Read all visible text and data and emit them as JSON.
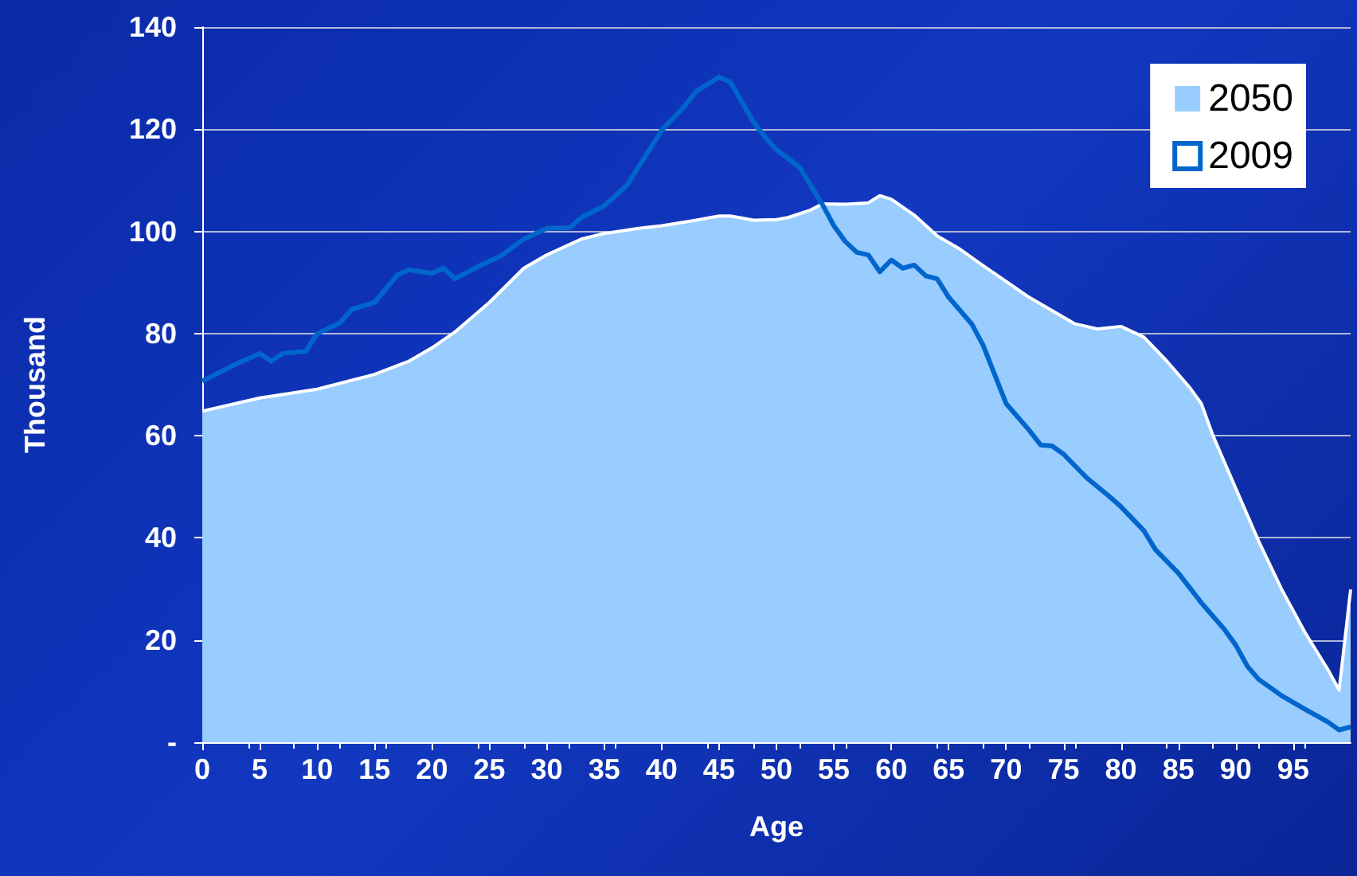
{
  "chart_data": {
    "type": "area",
    "xlabel": "Age",
    "ylabel": "Thousand",
    "xlim": [
      0,
      100
    ],
    "xticks": [
      0,
      5,
      10,
      15,
      20,
      25,
      30,
      35,
      40,
      45,
      50,
      55,
      60,
      65,
      70,
      75,
      80,
      85,
      90,
      95
    ],
    "ylim": [
      0,
      140
    ],
    "yticks": [
      {
        "value": 0,
        "label": "-"
      },
      20,
      40,
      60,
      80,
      100,
      120,
      140
    ],
    "grid": "y",
    "legend": "top right",
    "marker": "none",
    "series": [
      {
        "name": "2050",
        "color": "#99ccff",
        "x": [
          0,
          5,
          10,
          15,
          18,
          20,
          22,
          25,
          28,
          30,
          33,
          35,
          38,
          40,
          43,
          45,
          46,
          48,
          50,
          51,
          53,
          54,
          56,
          58,
          59,
          60,
          62,
          64,
          66,
          68,
          70,
          72,
          74,
          76,
          78,
          80,
          82,
          84,
          86,
          87,
          88,
          90,
          92,
          94,
          96,
          98,
          99,
          100
        ],
        "values": [
          64.8,
          67.4,
          69.1,
          72.0,
          74.6,
          77.2,
          80.3,
          86.1,
          92.8,
          95.4,
          98.5,
          99.6,
          100.6,
          101.1,
          102.2,
          103.0,
          103.0,
          102.2,
          102.3,
          102.7,
          104.2,
          105.4,
          105.3,
          105.6,
          107.0,
          106.3,
          103.2,
          99.1,
          96.5,
          93.3,
          90.2,
          87.1,
          84.5,
          81.9,
          80.9,
          81.4,
          79.3,
          74.6,
          69.4,
          66.3,
          60.1,
          49.7,
          39.3,
          29.9,
          21.6,
          14.3,
          10.2,
          29.9
        ]
      },
      {
        "name": "2009",
        "type": "line",
        "color": "#0066cc",
        "x": [
          0,
          3,
          5,
          6,
          7,
          9,
          10,
          12,
          13,
          15,
          17,
          18,
          20,
          21,
          22,
          24,
          26,
          28,
          30,
          32,
          33,
          35,
          37,
          39,
          40,
          42,
          43,
          45,
          46,
          48,
          49,
          50,
          52,
          54,
          55,
          56,
          57,
          58,
          59,
          60,
          61,
          62,
          63,
          64,
          65,
          67,
          68,
          70,
          72,
          73,
          74,
          75,
          77,
          79,
          80,
          82,
          83,
          85,
          87,
          89,
          90,
          91,
          92,
          94,
          96,
          98,
          99,
          100
        ],
        "values": [
          70.7,
          74.1,
          76.1,
          74.6,
          76.1,
          76.5,
          80.0,
          82.1,
          84.7,
          86.1,
          91.5,
          92.5,
          91.8,
          92.8,
          90.7,
          93.1,
          95.2,
          98.5,
          100.6,
          100.7,
          102.7,
          105.0,
          109.1,
          116.2,
          119.8,
          124.5,
          127.4,
          130.2,
          129.2,
          121.4,
          118.5,
          116.0,
          112.6,
          105.3,
          101.1,
          98.0,
          95.9,
          95.4,
          92.1,
          94.4,
          92.8,
          93.4,
          91.3,
          90.7,
          87.1,
          81.9,
          77.7,
          66.3,
          61.1,
          58.2,
          58.0,
          56.4,
          51.8,
          48.1,
          46.1,
          41.4,
          37.7,
          33.1,
          27.3,
          22.1,
          19.0,
          14.9,
          12.3,
          9.1,
          6.5,
          4.0,
          2.4,
          3.0
        ]
      }
    ]
  }
}
